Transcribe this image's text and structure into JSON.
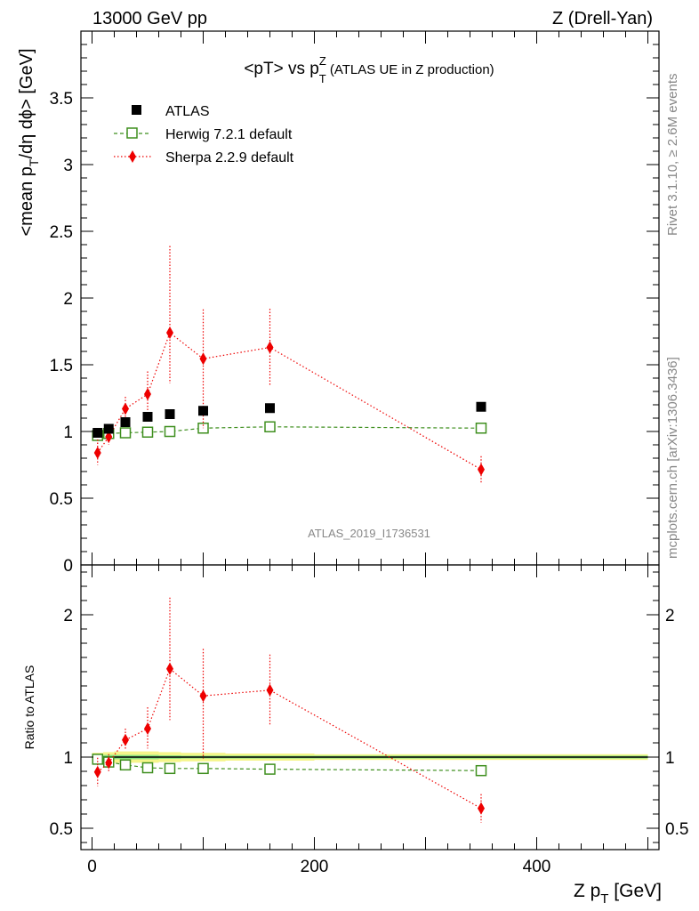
{
  "header": {
    "left": "13000 GeV pp",
    "right": "Z (Drell-Yan)"
  },
  "side": {
    "rivet": "Rivet 3.1.10, ≥ 2.6M events",
    "mcplots": "mcplots.cern.ch [arXiv:1306.3436]"
  },
  "colors": {
    "atlas": "#000000",
    "herwig": "#3f8f1f",
    "sherpa": "#ee0000",
    "band_outer": "#f5f58a",
    "band_inner": "#86e07e"
  },
  "chart_data": [
    {
      "type": "scatter",
      "title_main": "<pT> vs p",
      "title_sup": "Z",
      "title_sub": "T",
      "title_suffix": " (ATLAS UE in Z production)",
      "ylabel_prefix": "<mean p",
      "ylabel_sub": "T",
      "ylabel_suffix": "/dη dϕ> [GeV]",
      "watermark": "ATLAS_2019_I1736531",
      "xlim": [
        -10,
        510
      ],
      "ylim": [
        0,
        4
      ],
      "yticks": [
        "0",
        "0.5",
        "1",
        "1.5",
        "2",
        "2.5",
        "3",
        "3.5"
      ],
      "ytick_values": [
        0,
        0.5,
        1,
        1.5,
        2,
        2.5,
        3,
        3.5
      ],
      "legend_position": "top-left",
      "series": [
        {
          "name": "ATLAS",
          "marker": "filled-square",
          "x": [
            5,
            15,
            30,
            50,
            70,
            100,
            160,
            350
          ],
          "y": [
            0.99,
            1.02,
            1.07,
            1.11,
            1.13,
            1.155,
            1.175,
            1.185
          ]
        },
        {
          "name": "Herwig 7.2.1 default",
          "marker": "open-square",
          "line": "dashed",
          "x": [
            5,
            15,
            30,
            50,
            70,
            100,
            160,
            350
          ],
          "y": [
            0.97,
            0.985,
            0.99,
            0.995,
            1.0,
            1.025,
            1.035,
            1.025
          ]
        },
        {
          "name": "Sherpa 2.2.9 default",
          "marker": "diamond",
          "line": "dotted",
          "x": [
            5,
            15,
            30,
            50,
            70,
            100,
            160,
            350
          ],
          "y": [
            0.84,
            0.96,
            1.17,
            1.28,
            1.74,
            1.545,
            1.63,
            0.715
          ],
          "yerr_low": [
            0.09,
            0.06,
            0.07,
            0.15,
            0.38,
            0.52,
            0.29,
            0.1
          ],
          "yerr_high": [
            0.1,
            0.06,
            0.09,
            0.17,
            0.65,
            0.37,
            0.29,
            0.1
          ]
        }
      ]
    },
    {
      "type": "scatter",
      "ylabel": "Ratio to ATLAS",
      "xlabel_prefix": "Z p",
      "xlabel_sub": "T",
      "xlabel_suffix": " [GeV]",
      "xlim": [
        -10,
        510
      ],
      "ylim": [
        0.35,
        2.35
      ],
      "yticks": [
        "0.5",
        "1",
        "2"
      ],
      "ytick_values": [
        0.5,
        1,
        2
      ],
      "xticks": [
        "0",
        "200",
        "400"
      ],
      "xtick_values": [
        0,
        200,
        400
      ],
      "band": {
        "x": [
          0,
          10,
          20,
          40,
          60,
          80,
          120,
          200,
          500
        ],
        "outer": [
          0.03,
          0.035,
          0.04,
          0.04,
          0.035,
          0.03,
          0.025,
          0.02
        ],
        "inner": [
          0.012,
          0.015,
          0.015,
          0.015,
          0.012,
          0.01,
          0.01,
          0.01
        ]
      },
      "series": [
        {
          "name": "Herwig 7.2.1 default",
          "marker": "open-square",
          "line": "dashed",
          "x": [
            5,
            15,
            30,
            50,
            70,
            100,
            160,
            350
          ],
          "y": [
            0.985,
            0.965,
            0.945,
            0.925,
            0.92,
            0.92,
            0.915,
            0.905
          ]
        },
        {
          "name": "Sherpa 2.2.9 default",
          "marker": "diamond",
          "line": "dotted",
          "x": [
            5,
            15,
            30,
            50,
            70,
            100,
            160,
            350
          ],
          "y": [
            0.895,
            0.96,
            1.12,
            1.2,
            1.62,
            1.43,
            1.47,
            0.64
          ],
          "yerr_low": [
            0.1,
            0.06,
            0.07,
            0.14,
            0.36,
            0.44,
            0.25,
            0.1
          ],
          "yerr_high": [
            0.1,
            0.06,
            0.08,
            0.15,
            0.5,
            0.33,
            0.25,
            0.1
          ]
        }
      ]
    }
  ]
}
